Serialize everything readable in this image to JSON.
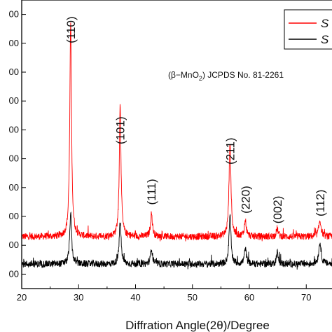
{
  "chart_data": {
    "type": "line",
    "xlabel": "Diffration Angle(2θ)/Degree",
    "ylabel": "",
    "xlim": [
      20,
      76
    ],
    "ylim": [
      0,
      1000
    ],
    "grid": false,
    "x_ticks": [
      "20",
      "30",
      "40",
      "50",
      "60",
      "70"
    ],
    "y_tick_labels": [
      "00",
      "00",
      "00",
      "00",
      "00",
      "00",
      "00",
      "00",
      "00",
      "00"
    ],
    "y_tick_values": [
      950,
      850,
      750,
      650,
      550,
      450,
      350,
      250,
      150,
      50
    ],
    "annotation": {
      "prefix": "(β−MnO",
      "subscript": "2",
      "suffix": ") JCPDS No. 81-2261"
    },
    "legend": {
      "position": "top-right",
      "entries": [
        {
          "label": "S",
          "color": "#ff0000"
        },
        {
          "label": "S",
          "color": "#000000"
        }
      ]
    },
    "series": [
      {
        "color": "#ff0000",
        "baseline": 180,
        "noise": 24,
        "peaks": [
          {
            "x": 28.6,
            "height": 740,
            "width": 0.18
          },
          {
            "x": 37.3,
            "height": 460,
            "width": 0.18
          },
          {
            "x": 42.8,
            "height": 80,
            "width": 0.2
          },
          {
            "x": 56.6,
            "height": 330,
            "width": 0.2
          },
          {
            "x": 59.3,
            "height": 55,
            "width": 0.2
          },
          {
            "x": 64.9,
            "height": 28,
            "width": 0.2
          },
          {
            "x": 72.4,
            "height": 55,
            "width": 0.25
          }
        ]
      },
      {
        "color": "#000000",
        "baseline": 85,
        "noise": 24,
        "peaks": [
          {
            "x": 28.6,
            "height": 175,
            "width": 0.2
          },
          {
            "x": 37.3,
            "height": 145,
            "width": 0.2
          },
          {
            "x": 42.8,
            "height": 55,
            "width": 0.2
          },
          {
            "x": 56.6,
            "height": 165,
            "width": 0.2
          },
          {
            "x": 59.3,
            "height": 55,
            "width": 0.2
          },
          {
            "x": 64.9,
            "height": 40,
            "width": 0.2
          },
          {
            "x": 72.4,
            "height": 75,
            "width": 0.25
          }
        ]
      }
    ],
    "peak_labels": [
      {
        "text": "(110)",
        "x": 28.6,
        "y": 850
      },
      {
        "text": "(101)",
        "x": 37.3,
        "y": 500
      },
      {
        "text": "(111)",
        "x": 42.8,
        "y": 290
      },
      {
        "text": "(211)",
        "x": 56.6,
        "y": 430
      },
      {
        "text": "(220)",
        "x": 59.3,
        "y": 260
      },
      {
        "text": "(002)",
        "x": 64.9,
        "y": 225
      },
      {
        "text": "(112)",
        "x": 72.4,
        "y": 250
      }
    ]
  }
}
